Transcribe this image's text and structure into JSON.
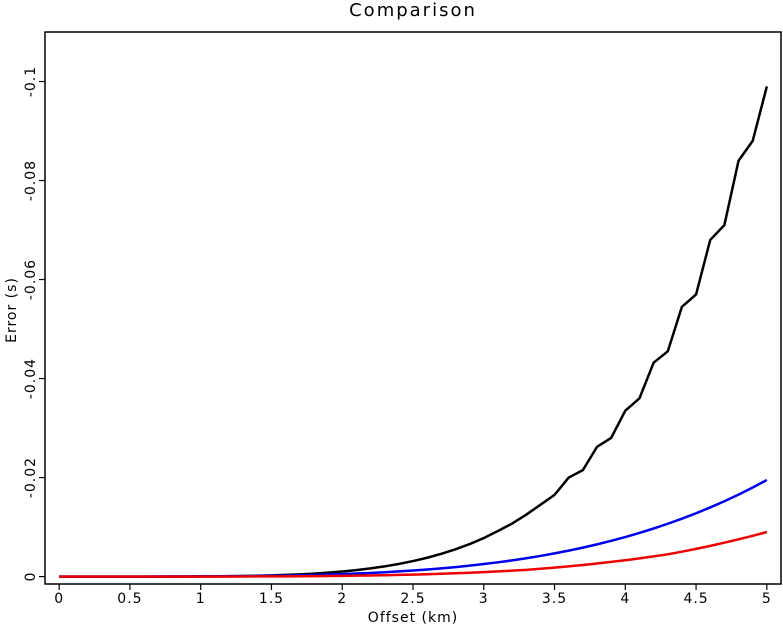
{
  "chart_data": {
    "type": "line",
    "title": "Comparison",
    "x_label": "Offset (km)",
    "y_label": "Error (s)",
    "x": [
      0,
      0.1,
      0.2,
      0.3,
      0.4,
      0.5,
      0.6,
      0.7,
      0.8,
      0.9,
      1,
      1.1,
      1.2,
      1.3,
      1.4,
      1.5,
      1.6,
      1.7,
      1.8,
      1.9,
      2,
      2.1,
      2.2,
      2.3,
      2.4,
      2.5,
      2.6,
      2.7,
      2.8,
      2.9,
      3,
      3.1,
      3.2,
      3.3,
      3.4,
      3.5,
      3.6,
      3.7,
      3.8,
      3.9,
      4,
      4.1,
      4.2,
      4.3,
      4.4,
      4.5,
      4.6,
      4.7,
      4.8,
      4.9,
      5
    ],
    "series": [
      {
        "color": "#000000",
        "values": [
          0,
          0,
          0,
          0,
          0,
          0,
          0,
          0,
          -1e-05,
          -2e-05,
          -3e-05,
          -5e-05,
          -8e-05,
          -0.00012,
          -0.00017,
          -0.00024,
          -0.00034,
          -0.00045,
          -0.0006,
          -0.00079,
          -0.00102,
          -0.00131,
          -0.00165,
          -0.00206,
          -0.00255,
          -0.00313,
          -0.0038,
          -0.00459,
          -0.00551,
          -0.00656,
          -0.00778,
          -0.0092,
          -0.0107,
          -0.0125,
          -0.0145,
          -0.0165,
          -0.02,
          -0.0215,
          -0.0262,
          -0.028,
          -0.0335,
          -0.036,
          -0.0432,
          -0.0455,
          -0.0545,
          -0.057,
          -0.068,
          -0.071,
          -0.084,
          -0.088,
          -0.099
        ]
      },
      {
        "color": "#0000ee",
        "values": [
          0,
          0,
          0,
          0,
          0,
          0,
          0,
          -1e-05,
          -1e-05,
          -2e-05,
          -3e-05,
          -5e-05,
          -6e-05,
          -9e-05,
          -0.00012,
          -0.00016,
          -0.0002,
          -0.00026,
          -0.00033,
          -0.00041,
          -0.0005,
          -0.00061,
          -0.00073,
          -0.00087,
          -0.00104,
          -0.00122,
          -0.00143,
          -0.00166,
          -0.00192,
          -0.00221,
          -0.00253,
          -0.00288,
          -0.00327,
          -0.0037,
          -0.00417,
          -0.00468,
          -0.00524,
          -0.00585,
          -0.00651,
          -0.00722,
          -0.00799,
          -0.00882,
          -0.00971,
          -0.01067,
          -0.01169,
          -0.01279,
          -0.01397,
          -0.01522,
          -0.01656,
          -0.01799,
          -0.0195
        ]
      },
      {
        "color": "#ee0000",
        "values": [
          0,
          0,
          0,
          0,
          0,
          0,
          0,
          0,
          0,
          0,
          0,
          0,
          0,
          -2e-05,
          -3e-05,
          -4e-05,
          -5e-05,
          -7e-05,
          -9e-05,
          -0.00012,
          -0.00015,
          -0.00019,
          -0.00023,
          -0.00028,
          -0.00034,
          -0.0004,
          -0.00048,
          -0.00057,
          -0.00067,
          -0.00078,
          -0.0009,
          -0.00104,
          -0.00119,
          -0.00136,
          -0.00157,
          -0.00181,
          -0.00206,
          -0.00234,
          -0.00264,
          -0.00296,
          -0.0033,
          -0.00367,
          -0.00407,
          -0.0045,
          -0.00503,
          -0.0056,
          -0.0062,
          -0.00684,
          -0.00752,
          -0.00824,
          -0.009
        ]
      }
    ],
    "xlim": [
      -0.1,
      5.1
    ],
    "ylim": [
      0.0015,
      -0.11
    ],
    "xticks": [
      0,
      0.5,
      1,
      1.5,
      2,
      2.5,
      3,
      3.5,
      4,
      4.5,
      5
    ],
    "yticks": [
      0,
      -0.02,
      -0.04,
      -0.06,
      -0.08,
      -0.1
    ]
  }
}
